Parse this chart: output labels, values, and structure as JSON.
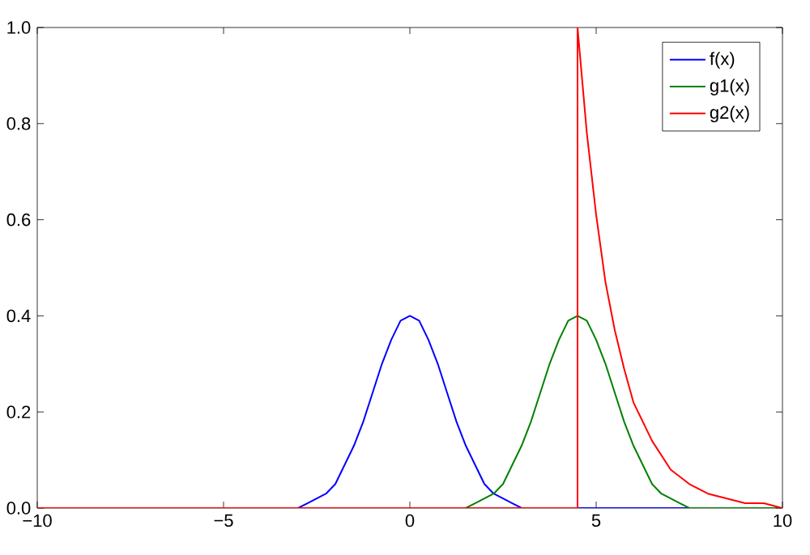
{
  "chart_data": {
    "type": "line",
    "legend": "top right",
    "xlim": [
      -10,
      10
    ],
    "ylim": [
      0,
      1
    ],
    "xticks": [
      {
        "value": -10,
        "label": "−10"
      },
      {
        "value": -5,
        "label": "−5"
      },
      {
        "value": 0,
        "label": "0"
      },
      {
        "value": 5,
        "label": "5"
      },
      {
        "value": 10,
        "label": "10"
      }
    ],
    "yticks": [
      {
        "value": 0,
        "label": "0.0"
      },
      {
        "value": 0.2,
        "label": "0.2"
      },
      {
        "value": 0.4,
        "label": "0.4"
      },
      {
        "value": 0.6,
        "label": "0.6"
      },
      {
        "value": 0.8,
        "label": "0.8"
      },
      {
        "value": 1,
        "label": "1.0"
      }
    ],
    "series": [
      {
        "name": "f(x)",
        "color": "#0000ff",
        "x": [
          -3.5,
          -3,
          -2.75,
          -2.5,
          -2.25,
          -2,
          -1.75,
          -1.5,
          -1.25,
          -1,
          -0.75,
          -0.5,
          -0.25,
          0,
          0.25,
          0.5,
          0.75,
          1,
          1.25,
          1.5,
          1.75,
          2,
          2.25,
          2.5,
          2.75,
          3,
          3.5,
          4,
          10
        ],
        "values": [
          0,
          0,
          0.01,
          0.02,
          0.03,
          0.05,
          0.09,
          0.13,
          0.18,
          0.24,
          0.3,
          0.35,
          0.39,
          0.4,
          0.39,
          0.35,
          0.3,
          0.24,
          0.18,
          0.13,
          0.09,
          0.05,
          0.03,
          0.02,
          0.01,
          0,
          0,
          0,
          0
        ]
      },
      {
        "name": "g1(x)",
        "color": "#008000",
        "x": [
          1,
          1.5,
          1.75,
          2,
          2.25,
          2.5,
          2.75,
          3,
          3.25,
          3.5,
          3.75,
          4,
          4.25,
          4.5,
          4.75,
          5,
          5.25,
          5.5,
          5.75,
          6,
          6.25,
          6.5,
          6.75,
          7,
          7.25,
          7.5,
          8,
          8.5,
          10
        ],
        "values": [
          0,
          0,
          0.01,
          0.02,
          0.03,
          0.05,
          0.09,
          0.13,
          0.18,
          0.24,
          0.3,
          0.35,
          0.39,
          0.4,
          0.39,
          0.35,
          0.3,
          0.24,
          0.18,
          0.13,
          0.09,
          0.05,
          0.03,
          0.02,
          0.01,
          0,
          0,
          0,
          0
        ]
      },
      {
        "name": "g2(x)",
        "color": "#ff0000",
        "x": [
          -10,
          4.5,
          4.5,
          4.75,
          5,
          5.25,
          5.5,
          5.75,
          6,
          6.5,
          7,
          7.5,
          8,
          8.5,
          9,
          9.5,
          10
        ],
        "values": [
          0,
          0,
          1,
          0.78,
          0.61,
          0.47,
          0.37,
          0.29,
          0.22,
          0.14,
          0.08,
          0.05,
          0.03,
          0.02,
          0.01,
          0.01,
          0
        ]
      }
    ]
  }
}
